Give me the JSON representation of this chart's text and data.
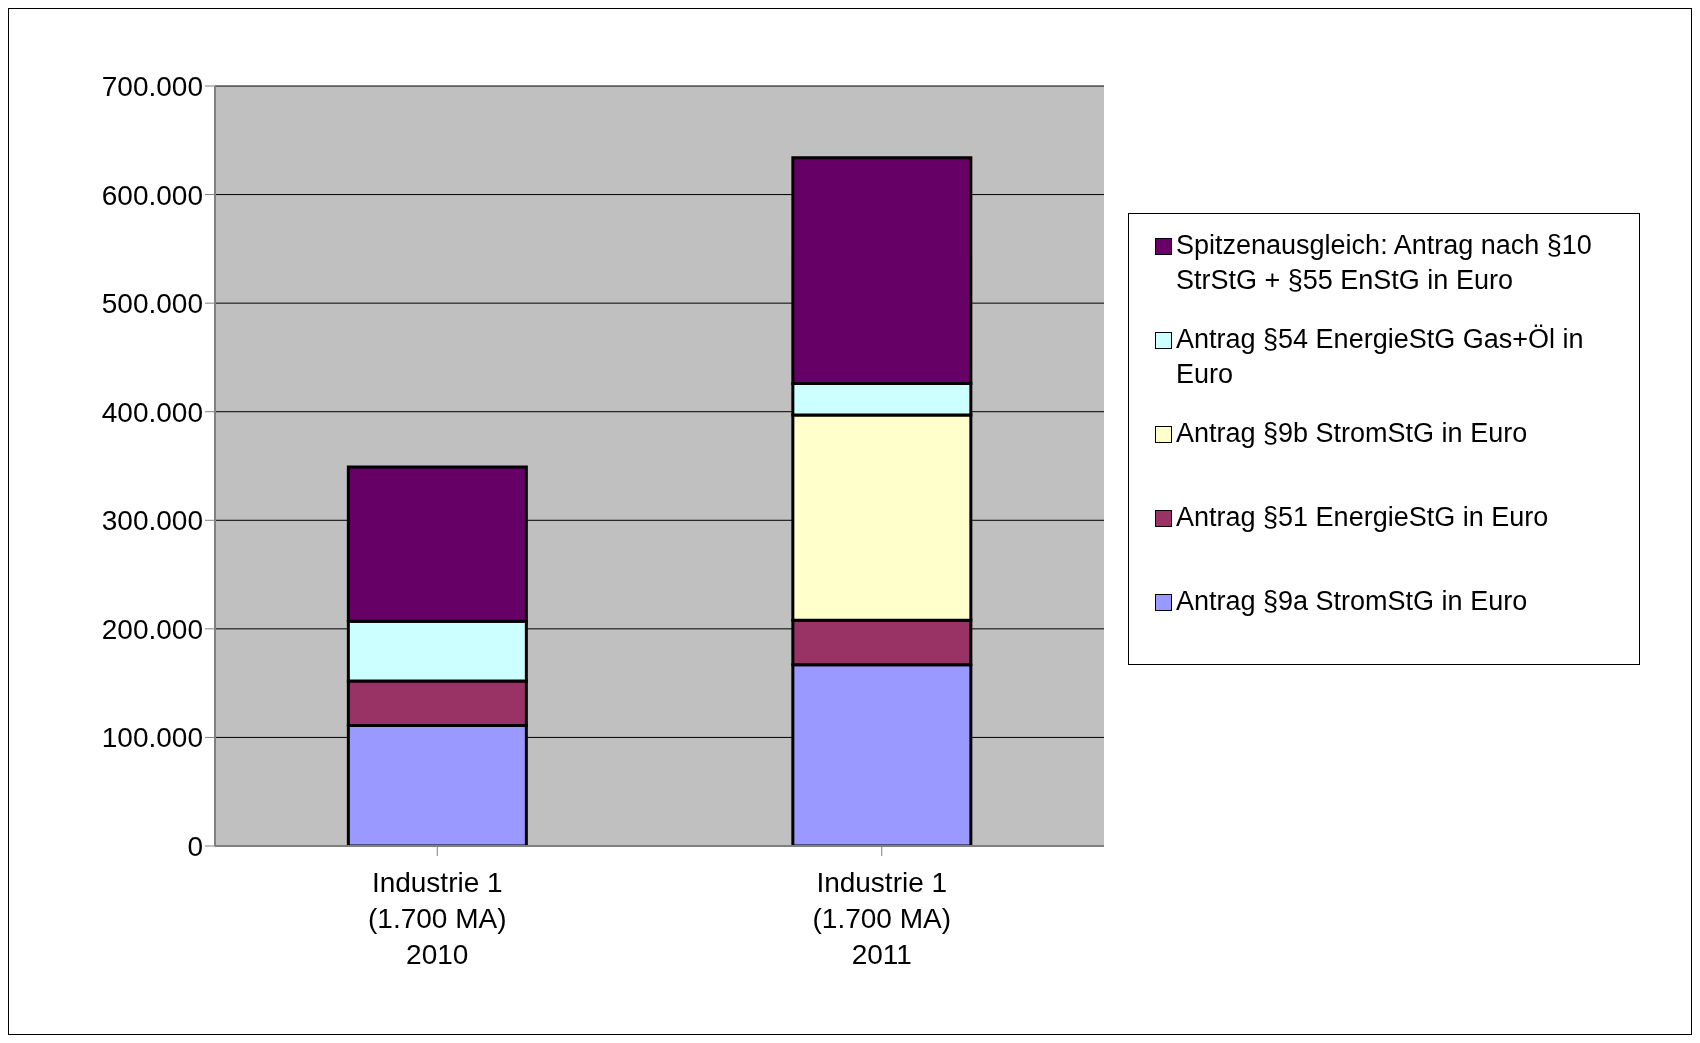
{
  "chart_data": {
    "type": "bar",
    "stacked": true,
    "categories": [
      "Industrie 1\n(1.700 MA)\n2010",
      "Industrie 1\n(1.700 MA)\n2011"
    ],
    "series": [
      {
        "name": "Antrag §9a StromStG in Euro",
        "color": "#9999ff",
        "values": [
          111000,
          167000
        ]
      },
      {
        "name": "Antrag §51 EnergieStG in Euro",
        "color": "#993366",
        "values": [
          41000,
          41000
        ]
      },
      {
        "name": "Antrag §9b StromStG in Euro",
        "color": "#ffffcc",
        "values": [
          0,
          189000
        ]
      },
      {
        "name": "Antrag §54 EnergieStG Gas+Öl in Euro",
        "color": "#ccffff",
        "values": [
          55000,
          29000
        ]
      },
      {
        "name": "Spitzenausgleich: Antrag nach §10 StrStG + §55 EnStG in Euro",
        "color": "#660066",
        "values": [
          142000,
          208000
        ]
      }
    ],
    "ylim": [
      0,
      700000
    ],
    "yticks": [
      {
        "value": 0,
        "label": "0"
      },
      {
        "value": 100000,
        "label": "100.000"
      },
      {
        "value": 200000,
        "label": "200.000"
      },
      {
        "value": 300000,
        "label": "300.000"
      },
      {
        "value": 400000,
        "label": "400.000"
      },
      {
        "value": 500000,
        "label": "500.000"
      },
      {
        "value": 600000,
        "label": "600.000"
      },
      {
        "value": 700000,
        "label": "700.000"
      }
    ],
    "grid": "y",
    "legend": "right"
  }
}
